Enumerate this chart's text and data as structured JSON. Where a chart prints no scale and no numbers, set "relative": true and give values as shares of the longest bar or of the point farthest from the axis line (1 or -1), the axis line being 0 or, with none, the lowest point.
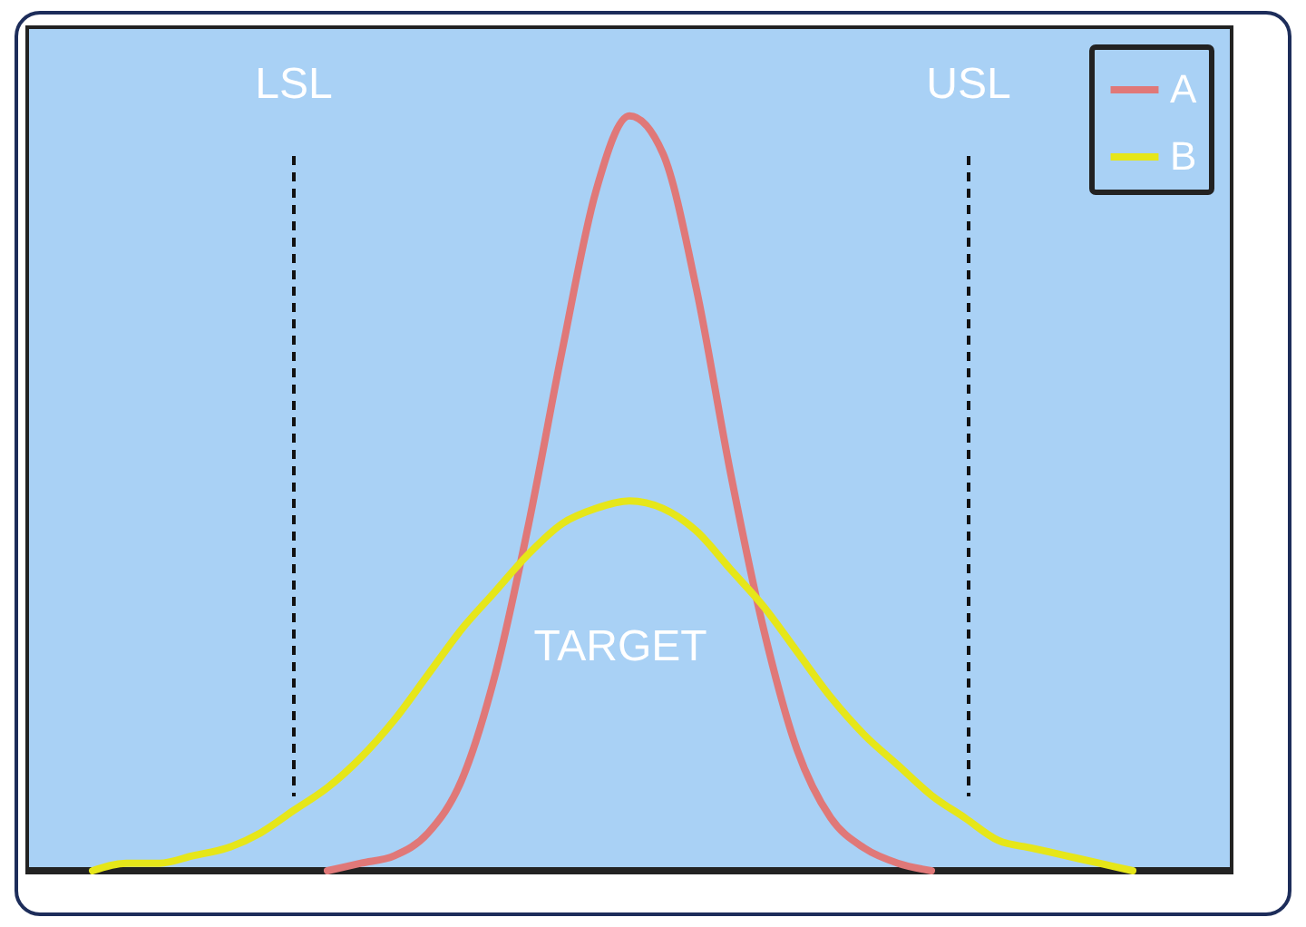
{
  "chart_data": {
    "type": "line",
    "relative": true,
    "categories": [
      null,
      null,
      null,
      null,
      null,
      null,
      null,
      null,
      null,
      null,
      null,
      null,
      null,
      null,
      null,
      null,
      null,
      null,
      null,
      null,
      null,
      null,
      null,
      null,
      null,
      null,
      null,
      null,
      null,
      null,
      null,
      null,
      null,
      null,
      null,
      null,
      null
    ],
    "series": [
      {
        "name": "A",
        "color": "#e07878",
        "values": [
          null,
          null,
          null,
          null,
          null,
          null,
          null,
          null,
          null,
          0,
          0.01,
          0.02,
          0.05,
          0.12,
          0.26,
          0.46,
          0.69,
          0.9,
          1,
          0.95,
          0.77,
          0.53,
          0.32,
          0.16,
          0.07,
          0.03,
          0.01,
          0,
          null,
          null,
          null,
          null,
          null,
          null,
          null,
          null,
          null
        ]
      },
      {
        "name": "B",
        "color": "#e6e619",
        "values": [
          null,
          null,
          0,
          0.01,
          0.01,
          0.02,
          0.03,
          0.05,
          0.08,
          0.11,
          0.15,
          0.2,
          0.26,
          0.32,
          0.37,
          0.42,
          0.46,
          0.48,
          0.49,
          0.48,
          0.45,
          0.4,
          0.35,
          0.29,
          0.23,
          0.18,
          0.14,
          0.1,
          0.07,
          0.04,
          0.03,
          0.02,
          0.01,
          0,
          null,
          null,
          null
        ]
      }
    ],
    "annotations": [
      "LSL",
      "USL",
      "TARGET"
    ],
    "legend": "top right"
  }
}
